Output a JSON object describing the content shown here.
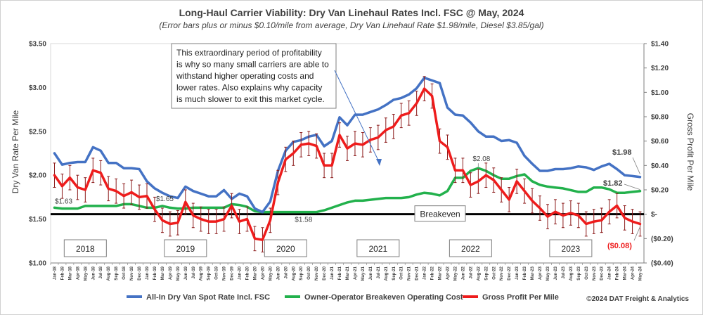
{
  "chart_data": {
    "type": "line",
    "title": "Long-Haul Carrier Viability: Dry Van Linehaul Rates Incl. FSC @ May, 2024",
    "subtitle": "(Error bars plus or minus $0.10/mile from average, Dry Van Linehaul Rate $1.98/mile, Diesel $3.85/gal)",
    "ylabel_left": "Dry Van Rate Per Mile",
    "ylabel_right": "Gross Profit Per Mile",
    "ylim_left": [
      1.0,
      3.5
    ],
    "ylim_right": [
      -0.4,
      1.4
    ],
    "yticks_left": [
      "$1.00",
      "$1.50",
      "$2.00",
      "$2.50",
      "$3.00",
      "$3.50"
    ],
    "yticks_right": [
      "($0.40)",
      "($0.20)",
      "$-",
      "$0.20",
      "$0.40",
      "$0.60",
      "$0.80",
      "$1.00",
      "$1.20",
      "$1.40"
    ],
    "x": [
      "Jan-18",
      "Feb-18",
      "Mar-18",
      "Apr-18",
      "May-18",
      "Jun-18",
      "Jul-18",
      "Aug-18",
      "Sep-18",
      "Oct-18",
      "Nov-18",
      "Dec-18",
      "Jan-19",
      "Feb-19",
      "Mar-19",
      "Apr-19",
      "May-19",
      "Jun-19",
      "Jul-19",
      "Aug-19",
      "Sep-19",
      "Oct-19",
      "Nov-19",
      "Dec-19",
      "Jan-20",
      "Feb-20",
      "Mar-20",
      "Apr-20",
      "May-20",
      "Jun-20",
      "Jul-20",
      "Aug-20",
      "Sep-20",
      "Oct-20",
      "Nov-20",
      "Dec-20",
      "Jan-21",
      "Feb-21",
      "Mar-21",
      "Apr-21",
      "May-21",
      "Jun-21",
      "Jul-21",
      "Aug-21",
      "Sep-21",
      "Oct-21",
      "Nov-21",
      "Dec-21",
      "Jan-22",
      "Feb-22",
      "Mar-22",
      "Apr-22",
      "May-22",
      "Jun-22",
      "Jul-22",
      "Aug-22",
      "Sep-22",
      "Oct-22",
      "Nov-22",
      "Dec-22",
      "Jan-23",
      "Feb-23",
      "Mar-23",
      "Apr-23",
      "May-23",
      "Jun-23",
      "Jul-23",
      "Aug-23",
      "Sep-23",
      "Oct-23",
      "Nov-23",
      "Dec-23",
      "Jan-24",
      "Feb-24",
      "Mar-24",
      "Apr-24",
      "May-24"
    ],
    "series": [
      {
        "name": "All-In Dry Van Spot Rate Incl. FSC",
        "axis": "left",
        "color": "#4472c4",
        "values": [
          2.25,
          2.12,
          2.14,
          2.15,
          2.15,
          2.32,
          2.28,
          2.14,
          2.14,
          2.08,
          2.08,
          2.07,
          1.93,
          1.85,
          1.8,
          1.76,
          1.74,
          1.87,
          1.82,
          1.79,
          1.76,
          1.76,
          1.83,
          1.73,
          1.79,
          1.76,
          1.62,
          1.58,
          1.7,
          2.05,
          2.28,
          2.38,
          2.4,
          2.44,
          2.46,
          2.33,
          2.39,
          2.66,
          2.57,
          2.69,
          2.69,
          2.72,
          2.75,
          2.8,
          2.86,
          2.88,
          2.92,
          2.99,
          3.11,
          3.08,
          3.05,
          2.77,
          2.69,
          2.68,
          2.6,
          2.5,
          2.44,
          2.44,
          2.39,
          2.4,
          2.37,
          2.22,
          2.13,
          2.05,
          2.05,
          2.07,
          2.07,
          2.08,
          2.1,
          2.09,
          2.06,
          2.1,
          2.13,
          2.07,
          2.0,
          1.99,
          1.98
        ]
      },
      {
        "name": "Owner-Operator Breakeven Operating Cost",
        "axis": "left",
        "color": "#22b14c",
        "values": [
          1.63,
          1.62,
          1.62,
          1.62,
          1.65,
          1.65,
          1.65,
          1.65,
          1.65,
          1.67,
          1.67,
          1.65,
          1.63,
          1.63,
          1.65,
          1.63,
          1.62,
          1.62,
          1.63,
          1.63,
          1.63,
          1.63,
          1.63,
          1.67,
          1.66,
          1.64,
          1.59,
          1.58,
          1.58,
          1.58,
          1.58,
          1.58,
          1.58,
          1.58,
          1.58,
          1.6,
          1.63,
          1.66,
          1.69,
          1.71,
          1.71,
          1.72,
          1.73,
          1.74,
          1.74,
          1.74,
          1.75,
          1.78,
          1.8,
          1.79,
          1.77,
          1.82,
          1.97,
          1.97,
          2.05,
          2.08,
          2.05,
          2.0,
          1.96,
          1.96,
          1.99,
          2.01,
          1.93,
          1.89,
          1.87,
          1.86,
          1.85,
          1.83,
          1.81,
          1.81,
          1.86,
          1.86,
          1.84,
          1.8,
          1.8,
          1.81,
          1.82
        ]
      },
      {
        "name": "Gross Profit Per Mile",
        "axis": "right",
        "color": "#ee1c1c",
        "error_bar": 0.1,
        "values": [
          0.32,
          0.23,
          0.3,
          0.22,
          0.2,
          0.36,
          0.34,
          0.21,
          0.19,
          0.15,
          0.18,
          0.14,
          0.15,
          0.04,
          -0.05,
          -0.08,
          -0.07,
          0.1,
          -0.01,
          -0.04,
          -0.06,
          -0.06,
          -0.04,
          0.07,
          -0.06,
          -0.04,
          -0.2,
          -0.21,
          -0.05,
          0.26,
          0.45,
          0.5,
          0.57,
          0.58,
          0.56,
          0.4,
          0.4,
          0.65,
          0.54,
          0.58,
          0.57,
          0.61,
          0.63,
          0.69,
          0.72,
          0.81,
          0.83,
          0.91,
          1.03,
          0.97,
          0.6,
          0.55,
          0.36,
          0.36,
          0.24,
          0.27,
          0.32,
          0.28,
          0.2,
          0.12,
          0.27,
          0.19,
          0.11,
          0.05,
          -0.02,
          0.02,
          -0.01,
          0.01,
          -0.01,
          -0.08,
          -0.06,
          -0.05,
          0.02,
          0.07,
          -0.03,
          -0.06,
          -0.08
        ]
      }
    ],
    "data_labels": {
      "blue_last": "$1.98",
      "green_last": "$1.82",
      "red_last": "($0.08)",
      "green_2018": "$1.63",
      "green_2019": "$1.65",
      "green_2020": "$1.58",
      "green_2022": "$2.08"
    },
    "breakeven_label": "Breakeven",
    "years": [
      "2018",
      "2019",
      "2020",
      "2021",
      "2022",
      "2023"
    ],
    "annotation": "This extraordinary period of profitability is why so many small carriers are able to withstand higher operating costs and lower rates. Also explains why capacity is much slower to exit this market cycle.",
    "annotation_lines": [
      "This extraordinary period of profitability",
      "is why so many small carriers are able to",
      "withstand higher operating costs and",
      "lower rates. Also explains why capacity",
      "is much slower to exit this market cycle."
    ],
    "legend": {
      "placement": "bottom",
      "items": [
        {
          "label": "All-In Dry Van Spot Rate Incl. FSC",
          "color": "#4472c4"
        },
        {
          "label": "Owner-Operator Breakeven Operating Cost",
          "color": "#22b14c"
        },
        {
          "label": "Gross Profit Per Mile",
          "color": "#ee1c1c"
        }
      ]
    },
    "copyright": "©2024 DAT Freight & Analytics"
  }
}
